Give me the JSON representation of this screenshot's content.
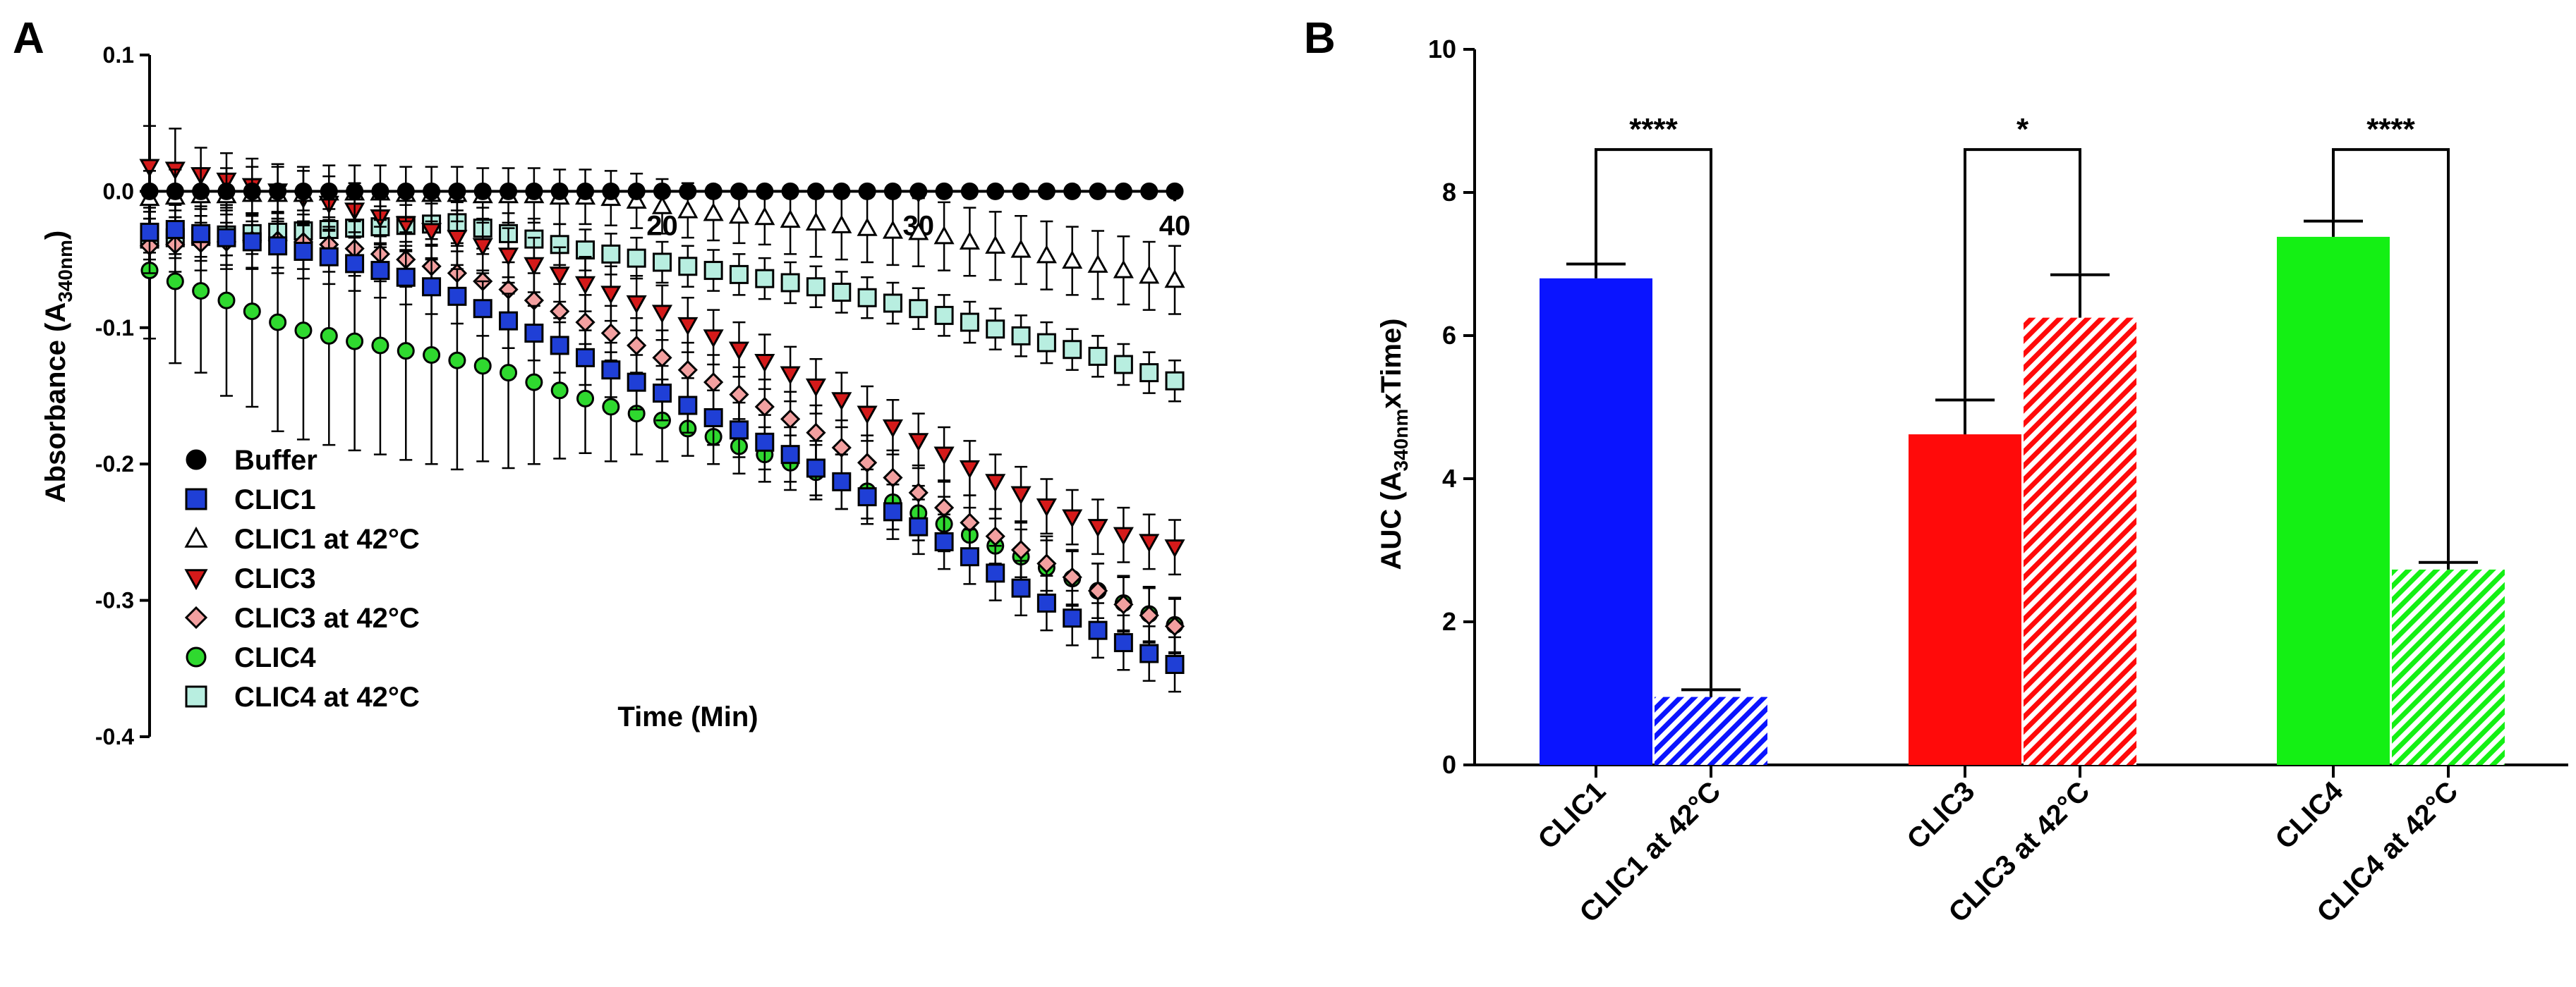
{
  "panel_a": {
    "label": "A"
  },
  "panel_b": {
    "label": "B"
  },
  "colors": {
    "blue": "#1f3fd6",
    "red": "#d41a1a",
    "green": "#2fd92f",
    "pink": "#f2a0a0",
    "teal": "#b8eee0",
    "bar_blue": "#0a14ff",
    "bar_red": "#ff0a0a",
    "bar_green": "#14f014"
  },
  "chart_data": [
    {
      "type": "scatter",
      "title": "",
      "xlabel": "Time (Min)",
      "ylabel": "Absorbance (A",
      "ylabel_sub": "340nm",
      "ylabel_close": ")",
      "xlim": [
        0,
        40
      ],
      "ylim": [
        -0.4,
        0.1
      ],
      "x_ticks": [
        20,
        30,
        40
      ],
      "y_ticks": [
        0.1,
        0.0,
        -0.1,
        -0.2,
        -0.3,
        -0.4
      ],
      "y_tick_labels": [
        "0.1",
        "0.0",
        "-0.1",
        "-0.2",
        "-0.3",
        "-0.4"
      ],
      "legend_position": "bottom-left",
      "x": [
        0,
        1,
        2,
        3,
        4,
        5,
        6,
        7,
        8,
        9,
        10,
        11,
        12,
        13,
        14,
        15,
        16,
        17,
        18,
        19,
        20,
        21,
        22,
        23,
        24,
        25,
        26,
        27,
        28,
        29,
        30,
        31,
        32,
        33,
        34,
        35,
        36,
        37,
        38,
        39,
        40
      ],
      "series": [
        {
          "name": "Buffer",
          "marker": "circle",
          "color": "#000000",
          "values": [
            0,
            0,
            0,
            0,
            0,
            0,
            0,
            0,
            0,
            0,
            0,
            0,
            0,
            0,
            0,
            0,
            0,
            0,
            0,
            0,
            0,
            0,
            0,
            0,
            0,
            0,
            0,
            0,
            0,
            0,
            0,
            0,
            0,
            0,
            0,
            0,
            0,
            0,
            0,
            0,
            0
          ],
          "error": [
            0.004,
            0.004,
            0.004,
            0.004,
            0.004,
            0.004,
            0.004,
            0.004,
            0.004,
            0.004,
            0.004,
            0.004,
            0.004,
            0.004,
            0.004,
            0.004,
            0.004,
            0.004,
            0.004,
            0.004,
            0.004,
            0.004,
            0.004,
            0.004,
            0.004,
            0.004,
            0.004,
            0.004,
            0.004,
            0.004,
            0.004,
            0.004,
            0.004,
            0.004,
            0.004,
            0.004,
            0.004,
            0.004,
            0.004,
            0.004,
            0.004
          ]
        },
        {
          "name": "CLIC1",
          "marker": "square",
          "color": "#1f3fd6",
          "values": [
            -0.03,
            -0.028,
            -0.031,
            -0.034,
            -0.037,
            -0.04,
            -0.044,
            -0.048,
            -0.053,
            -0.058,
            -0.063,
            -0.07,
            -0.077,
            -0.086,
            -0.095,
            -0.104,
            -0.113,
            -0.122,
            -0.131,
            -0.14,
            -0.148,
            -0.157,
            -0.166,
            -0.175,
            -0.184,
            -0.193,
            -0.203,
            -0.213,
            -0.224,
            -0.235,
            -0.246,
            -0.257,
            -0.268,
            -0.28,
            -0.291,
            -0.302,
            -0.313,
            -0.322,
            -0.331,
            -0.339,
            -0.347
          ],
          "error": [
            0.015,
            0.018,
            0.02,
            0.02,
            0.02,
            0.02,
            0.02,
            0.02,
            0.02,
            0.02,
            0.02,
            0.02,
            0.02,
            0.02,
            0.02,
            0.02,
            0.02,
            0.02,
            0.02,
            0.02,
            0.02,
            0.02,
            0.02,
            0.02,
            0.02,
            0.02,
            0.02,
            0.02,
            0.02,
            0.02,
            0.02,
            0.02,
            0.02,
            0.02,
            0.02,
            0.02,
            0.02,
            0.02,
            0.02,
            0.02,
            0.02
          ]
        },
        {
          "name": "CLIC1 at 42°C",
          "marker": "triangle-up",
          "color": "#ffffff",
          "values": [
            -0.005,
            -0.004,
            -0.003,
            -0.003,
            -0.002,
            -0.002,
            -0.002,
            -0.001,
            -0.001,
            -0.001,
            -0.002,
            -0.002,
            -0.002,
            -0.003,
            -0.003,
            -0.003,
            -0.004,
            -0.004,
            -0.005,
            -0.007,
            -0.011,
            -0.014,
            -0.016,
            -0.018,
            -0.019,
            -0.021,
            -0.023,
            -0.025,
            -0.027,
            -0.029,
            -0.03,
            -0.033,
            -0.037,
            -0.04,
            -0.043,
            -0.047,
            -0.051,
            -0.054,
            -0.058,
            -0.062,
            -0.065
          ],
          "error": [
            0.02,
            0.02,
            0.02,
            0.02,
            0.02,
            0.02,
            0.02,
            0.02,
            0.02,
            0.02,
            0.02,
            0.02,
            0.02,
            0.02,
            0.02,
            0.02,
            0.02,
            0.02,
            0.02,
            0.02,
            0.02,
            0.02,
            0.02,
            0.02,
            0.02,
            0.025,
            0.025,
            0.025,
            0.025,
            0.025,
            0.025,
            0.025,
            0.025,
            0.025,
            0.025,
            0.025,
            0.025,
            0.025,
            0.025,
            0.025,
            0.025
          ]
        },
        {
          "name": "CLIC3",
          "marker": "triangle-down",
          "color": "#d41a1a",
          "values": [
            0.018,
            0.016,
            0.012,
            0.008,
            0.004,
            0.0,
            -0.005,
            -0.009,
            -0.014,
            -0.019,
            -0.024,
            -0.029,
            -0.034,
            -0.04,
            -0.047,
            -0.054,
            -0.061,
            -0.068,
            -0.075,
            -0.082,
            -0.089,
            -0.098,
            -0.107,
            -0.116,
            -0.125,
            -0.134,
            -0.143,
            -0.153,
            -0.163,
            -0.173,
            -0.183,
            -0.193,
            -0.203,
            -0.213,
            -0.222,
            -0.231,
            -0.239,
            -0.246,
            -0.252,
            -0.257,
            -0.261
          ],
          "error": [
            0.03,
            0.03,
            0.02,
            0.02,
            0.02,
            0.02,
            0.02,
            0.02,
            0.02,
            0.02,
            0.02,
            0.02,
            0.02,
            0.02,
            0.02,
            0.02,
            0.02,
            0.02,
            0.02,
            0.02,
            0.02,
            0.02,
            0.02,
            0.02,
            0.02,
            0.02,
            0.02,
            0.02,
            0.02,
            0.02,
            0.02,
            0.02,
            0.02,
            0.02,
            0.02,
            0.02,
            0.02,
            0.02,
            0.02,
            0.02,
            0.02
          ]
        },
        {
          "name": "CLIC3 at 42°C",
          "marker": "diamond",
          "color": "#f2a0a0",
          "values": [
            -0.04,
            -0.039,
            -0.038,
            -0.037,
            -0.036,
            -0.036,
            -0.037,
            -0.039,
            -0.042,
            -0.046,
            -0.05,
            -0.055,
            -0.06,
            -0.066,
            -0.072,
            -0.08,
            -0.088,
            -0.096,
            -0.104,
            -0.113,
            -0.122,
            -0.131,
            -0.14,
            -0.149,
            -0.158,
            -0.167,
            -0.177,
            -0.188,
            -0.199,
            -0.21,
            -0.221,
            -0.232,
            -0.243,
            -0.253,
            -0.263,
            -0.273,
            -0.283,
            -0.293,
            -0.303,
            -0.311,
            -0.319
          ],
          "error": [
            0.02,
            0.02,
            0.02,
            0.02,
            0.02,
            0.02,
            0.02,
            0.02,
            0.02,
            0.02,
            0.02,
            0.02,
            0.02,
            0.02,
            0.02,
            0.02,
            0.02,
            0.02,
            0.02,
            0.02,
            0.02,
            0.02,
            0.02,
            0.02,
            0.02,
            0.02,
            0.02,
            0.02,
            0.02,
            0.02,
            0.02,
            0.02,
            0.02,
            0.02,
            0.02,
            0.02,
            0.02,
            0.02,
            0.02,
            0.02,
            0.02
          ]
        },
        {
          "name": "CLIC4",
          "marker": "circle",
          "color": "#2fd92f",
          "values": [
            -0.058,
            -0.066,
            -0.073,
            -0.08,
            -0.088,
            -0.096,
            -0.102,
            -0.106,
            -0.11,
            -0.113,
            -0.117,
            -0.12,
            -0.124,
            -0.128,
            -0.133,
            -0.14,
            -0.146,
            -0.152,
            -0.158,
            -0.163,
            -0.168,
            -0.174,
            -0.18,
            -0.187,
            -0.193,
            -0.199,
            -0.206,
            -0.213,
            -0.22,
            -0.228,
            -0.236,
            -0.244,
            -0.252,
            -0.26,
            -0.268,
            -0.276,
            -0.284,
            -0.293,
            -0.302,
            -0.31,
            -0.318
          ],
          "error": [
            0.05,
            0.06,
            0.06,
            0.07,
            0.07,
            0.08,
            0.08,
            0.08,
            0.08,
            0.08,
            0.08,
            0.08,
            0.08,
            0.07,
            0.07,
            0.06,
            0.05,
            0.04,
            0.04,
            0.03,
            0.03,
            0.02,
            0.02,
            0.02,
            0.02,
            0.02,
            0.02,
            0.02,
            0.02,
            0.02,
            0.02,
            0.02,
            0.02,
            0.02,
            0.02,
            0.02,
            0.02,
            0.02,
            0.02,
            0.02,
            0.02
          ]
        },
        {
          "name": "CLIC4  at 42°C",
          "marker": "square",
          "color": "#b8eee0",
          "values": [
            -0.035,
            -0.034,
            -0.033,
            -0.032,
            -0.031,
            -0.03,
            -0.029,
            -0.028,
            -0.027,
            -0.026,
            -0.025,
            -0.024,
            -0.023,
            -0.027,
            -0.031,
            -0.035,
            -0.039,
            -0.043,
            -0.046,
            -0.049,
            -0.052,
            -0.055,
            -0.058,
            -0.061,
            -0.064,
            -0.067,
            -0.07,
            -0.074,
            -0.078,
            -0.082,
            -0.086,
            -0.091,
            -0.096,
            -0.101,
            -0.106,
            -0.111,
            -0.116,
            -0.121,
            -0.127,
            -0.133,
            -0.139
          ],
          "error": [
            0.015,
            0.015,
            0.015,
            0.015,
            0.015,
            0.015,
            0.015,
            0.015,
            0.015,
            0.015,
            0.015,
            0.015,
            0.015,
            0.015,
            0.015,
            0.015,
            0.015,
            0.015,
            0.015,
            0.015,
            0.015,
            0.015,
            0.015,
            0.015,
            0.015,
            0.015,
            0.015,
            0.015,
            0.015,
            0.015,
            0.015,
            0.015,
            0.015,
            0.015,
            0.015,
            0.015,
            0.015,
            0.015,
            0.015,
            0.015,
            0.015
          ]
        }
      ]
    },
    {
      "type": "bar",
      "title": "",
      "xlabel": "",
      "ylabel": "AUC (A",
      "ylabel_sub": "340nm",
      "ylabel_close": "xTime)",
      "ylim": [
        0,
        10
      ],
      "y_ticks": [
        0,
        2,
        4,
        6,
        8,
        10
      ],
      "y_tick_labels": [
        "0",
        "2",
        "4",
        "6",
        "8",
        "10"
      ],
      "categories": [
        "CLIC1",
        "CLIC1 at 42°C",
        "CLIC3",
        "CLIC3 at 42°C",
        "CLIC4",
        "CLIC4 at 42°C"
      ],
      "values": [
        6.8,
        0.95,
        4.62,
        6.25,
        7.38,
        2.73
      ],
      "errors": [
        0.2,
        0.1,
        0.48,
        0.6,
        0.22,
        0.1
      ],
      "hatched": [
        false,
        true,
        false,
        true,
        false,
        true
      ],
      "bar_colors": [
        "#0a14ff",
        "#0a14ff",
        "#ff0a0a",
        "#ff0a0a",
        "#14f014",
        "#14f014"
      ],
      "significance": [
        {
          "pair": [
            0,
            1
          ],
          "label": "****",
          "height": 8.6
        },
        {
          "pair": [
            2,
            3
          ],
          "label": "*",
          "height": 8.6
        },
        {
          "pair": [
            4,
            5
          ],
          "label": "****",
          "height": 8.6
        }
      ]
    }
  ]
}
